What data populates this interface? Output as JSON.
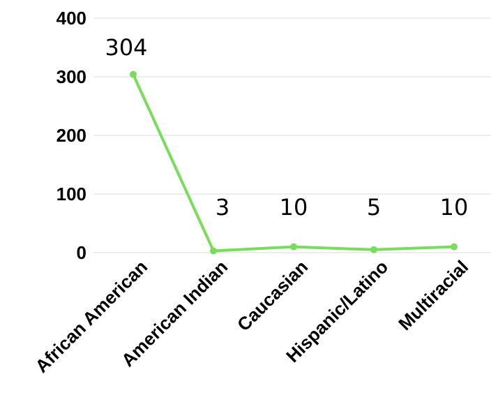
{
  "chart_data": {
    "type": "line",
    "categories": [
      "African American",
      "American Indian",
      "Caucasian",
      "Hispanic/Latino",
      "Multiracial"
    ],
    "series": [
      {
        "values": [
          304,
          3,
          10,
          5,
          10
        ],
        "data_labels": [
          "304",
          "3",
          "10",
          "5",
          "10"
        ]
      }
    ],
    "yticks": [
      "0",
      "100",
      "200",
      "300",
      "400"
    ],
    "ylim": [
      0,
      400
    ],
    "grid": true,
    "legend": "none",
    "colors": {
      "line": "#77dd5b"
    }
  }
}
